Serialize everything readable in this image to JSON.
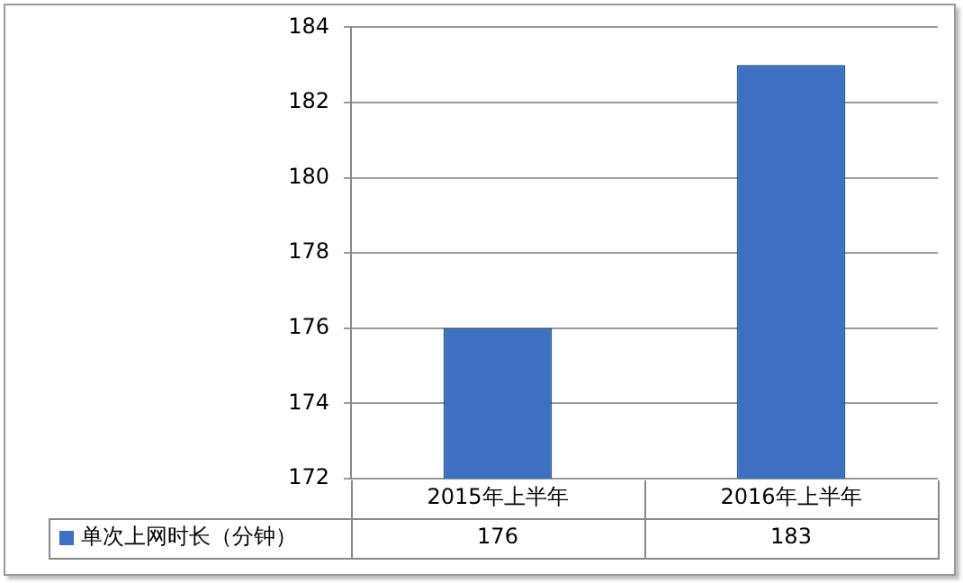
{
  "chart_data": {
    "type": "bar",
    "categories": [
      "2015年上半年",
      "2016年上半年"
    ],
    "series": [
      {
        "name": "单次上网时长（分钟）",
        "color": "#3b70c2",
        "values": [
          176,
          183
        ]
      }
    ],
    "ylim": [
      172,
      184
    ],
    "yticks": [
      172,
      174,
      176,
      178,
      180,
      182,
      184
    ],
    "grid": "y",
    "legend": "bottom left",
    "data_labels": true
  }
}
